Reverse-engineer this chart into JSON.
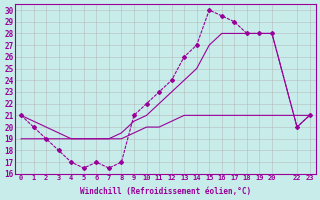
{
  "xlabel": "Windchill (Refroidissement éolien,°C)",
  "bg_color": "#c8ecea",
  "line_color": "#990099",
  "grid_color": "#b0b0b0",
  "xlim": [
    -0.5,
    23.5
  ],
  "ylim": [
    16,
    30.5
  ],
  "yticks": [
    16,
    17,
    18,
    19,
    20,
    21,
    22,
    23,
    24,
    25,
    26,
    27,
    28,
    29,
    30
  ],
  "xticks": [
    0,
    1,
    2,
    3,
    4,
    5,
    6,
    7,
    8,
    9,
    10,
    11,
    12,
    13,
    14,
    15,
    16,
    17,
    18,
    19,
    20,
    22,
    23
  ],
  "xtick_labels": [
    "0",
    "1",
    "2",
    "3",
    "4",
    "5",
    "6",
    "7",
    "8",
    "9",
    "10",
    "11",
    "12",
    "13",
    "14",
    "15",
    "16",
    "17",
    "18",
    "19",
    "20",
    "22",
    "23"
  ],
  "curve1_x": [
    0,
    1,
    2,
    3,
    4,
    5,
    6,
    7,
    8,
    9,
    10,
    11,
    12,
    13,
    14,
    15,
    16,
    17,
    18,
    19,
    20,
    22,
    23
  ],
  "curve1_y": [
    21,
    20,
    19,
    18,
    17,
    16.5,
    17,
    16.5,
    17,
    21,
    22,
    23,
    24,
    26,
    27,
    30,
    29.5,
    29,
    28,
    28,
    28,
    20,
    21
  ],
  "curve2_x": [
    0,
    1,
    2,
    3,
    4,
    5,
    6,
    7,
    8,
    9,
    10,
    11,
    12,
    13,
    14,
    15,
    16,
    17,
    18,
    19,
    20,
    22,
    23
  ],
  "curve2_y": [
    21,
    20.5,
    20,
    19.5,
    19,
    19,
    19,
    19,
    19.5,
    20.5,
    21,
    22,
    23,
    24,
    25,
    27,
    28,
    28,
    28,
    28,
    28,
    20,
    21
  ],
  "curve3_x": [
    0,
    1,
    2,
    3,
    4,
    5,
    6,
    7,
    8,
    9,
    10,
    11,
    12,
    13,
    14,
    15,
    16,
    17,
    18,
    19,
    20,
    22,
    23
  ],
  "curve3_y": [
    19,
    19,
    19,
    19,
    19,
    19,
    19,
    19,
    19,
    19.5,
    20,
    20,
    20.5,
    21,
    21,
    21,
    21,
    21,
    21,
    21,
    21,
    21,
    21
  ]
}
